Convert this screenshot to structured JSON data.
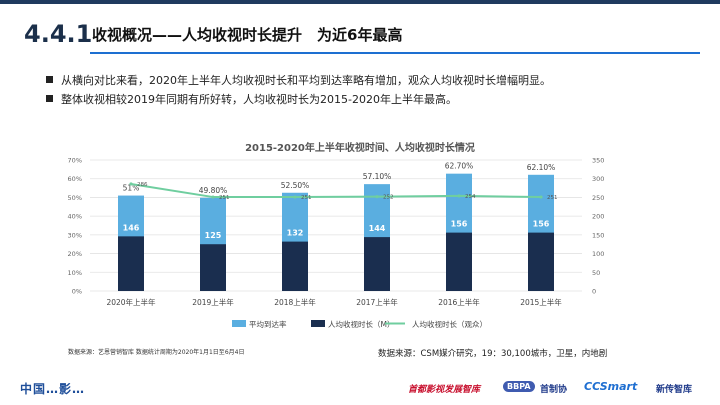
{
  "header": {
    "section_number": "4.4.1",
    "title": "收视概况——人均收视时长提升　为近6年最高"
  },
  "bullets": [
    "从横向对比来看，2020年上半年人均收视时长和平均到达率略有增加，观众人均收视时长增幅明显。",
    "整体收视相较2019年同期有所好转，人均收视时长为2015-2020年上半年最高。"
  ],
  "chart_data": {
    "type": "bar",
    "title": "2015-2020年上半年收视时间、人均收视时长情况",
    "categories": [
      "2020年上半年",
      "2019上半年",
      "2018上半年",
      "2017上半年",
      "2016上半年",
      "2015上半年"
    ],
    "y_left": {
      "min": 0,
      "max": 0.7,
      "ticks": [
        "0%",
        "10%",
        "20%",
        "30%",
        "40%",
        "50%",
        "60%",
        "70%"
      ]
    },
    "y_right": {
      "min": 0,
      "max": 350,
      "ticks": [
        "0",
        "50",
        "100",
        "150",
        "200",
        "250",
        "300",
        "350"
      ]
    },
    "series": [
      {
        "name": "平均到达率",
        "axis": "left",
        "color": "#5aaee0",
        "values": [
          0.51,
          0.498,
          0.525,
          0.571,
          0.627,
          0.621
        ],
        "labels": [
          "51%",
          "49.80%",
          "52.50%",
          "57.10%",
          "62.70%",
          "62.10%"
        ]
      },
      {
        "name": "人均收视时长（M）",
        "axis": "right",
        "color": "#1a2e4f",
        "values": [
          146,
          125,
          132,
          144,
          156,
          156
        ],
        "labels": [
          "146",
          "125",
          "132",
          "144",
          "156",
          "156"
        ]
      },
      {
        "name": "人均收视时长（观众）",
        "axis": "right",
        "type": "line",
        "color": "#6fce9f",
        "values": [
          286,
          251,
          251,
          252,
          254,
          251
        ],
        "labels": [
          "286",
          "251",
          "251",
          "252",
          "254",
          "251"
        ]
      }
    ],
    "legend_position": "bottom",
    "grid": true
  },
  "notes": {
    "left": "数据来源：艺恩营销智库 数据统计周期为2020年1月1日至6月4日",
    "right": "数据来源：CSM媒介研究，19：30,100城市，卫星，内地剧"
  },
  "footer": {
    "left_text": "中国…影…",
    "logo1": "首都影视发展智库",
    "logo_bbpa": "BBPA",
    "logo2": "首制协",
    "logo3": "CCSmart",
    "logo4": "新传智库"
  },
  "colors": {
    "accent_line": "#1d6fd1",
    "title_dark": "#1b2f4a"
  }
}
